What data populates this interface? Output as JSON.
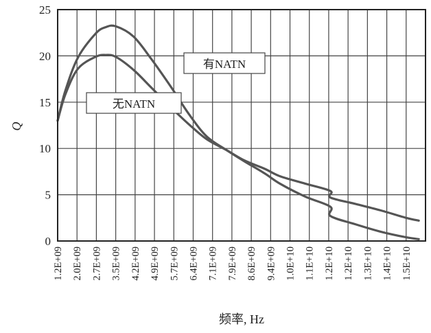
{
  "chart_data": {
    "type": "line",
    "title": "",
    "xlabel": "频率, Hz",
    "ylabel": "Q",
    "ylim": [
      0,
      25
    ],
    "yticks": [
      0,
      5,
      10,
      15,
      20,
      25
    ],
    "grid": true,
    "x_tick_labels": [
      "1.2E+09",
      "2.0E+09",
      "2.7E+09",
      "3.5E+09",
      "4.2E+09",
      "4.9E+09",
      "5.7E+09",
      "6.4E+09",
      "7.1E+09",
      "7.9E+09",
      "8.6E+09",
      "9.4E+09",
      "1.0E+10",
      "1.1E+10",
      "1.2E+10",
      "1.2E+10",
      "1.3E+10",
      "1.4E+10",
      "1.5E+10"
    ],
    "x": [
      1200000000.0,
      1500000000.0,
      2000000000.0,
      2700000000.0,
      3100000000.0,
      3500000000.0,
      4200000000.0,
      4900000000.0,
      5700000000.0,
      6400000000.0,
      7100000000.0,
      7900000000.0,
      8600000000.0,
      9400000000.0,
      10000000000.0,
      11000000000.0,
      12000000000.0,
      12000000000.0,
      13000000000.0,
      14000000000.0,
      15000000000.0,
      15500000000.0
    ],
    "series": [
      {
        "name": "有NATN",
        "color": "#555555",
        "values": [
          13.0,
          16.2,
          19.8,
          22.4,
          23.1,
          23.2,
          22.1,
          19.7,
          16.6,
          13.7,
          11.3,
          9.8,
          8.6,
          7.3,
          6.2,
          4.8,
          3.7,
          2.7,
          1.8,
          1.0,
          0.4,
          0.2
        ]
      },
      {
        "name": "无NATN",
        "color": "#555555",
        "values": [
          13.0,
          15.8,
          18.6,
          19.9,
          20.1,
          19.9,
          18.5,
          16.6,
          14.4,
          12.6,
          11.0,
          9.8,
          8.7,
          7.8,
          7.0,
          6.2,
          5.4,
          4.7,
          4.0,
          3.3,
          2.5,
          2.2
        ]
      }
    ],
    "legend": [
      {
        "series": "有NATN",
        "text": "有NATN"
      },
      {
        "series": "无NATN",
        "text": "无NATN"
      }
    ]
  }
}
